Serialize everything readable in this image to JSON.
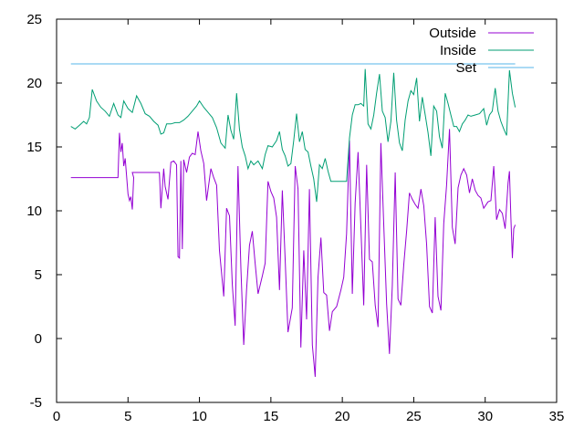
{
  "chart_data": {
    "type": "line",
    "title": "",
    "xlabel": "",
    "ylabel": "",
    "xlim": [
      0,
      35
    ],
    "ylim": [
      -5,
      25
    ],
    "x_ticks": [
      0,
      5,
      10,
      15,
      20,
      25,
      30,
      35
    ],
    "y_ticks": [
      -5,
      0,
      5,
      10,
      15,
      20,
      25
    ],
    "grid": false,
    "legend_position": "top-right",
    "series": [
      {
        "name": "Outside",
        "color": "#9400d3",
        "points": [
          [
            1.0,
            12.6
          ],
          [
            4.3,
            12.6
          ],
          [
            4.4,
            16.1
          ],
          [
            4.5,
            14.6
          ],
          [
            4.6,
            15.3
          ],
          [
            4.7,
            13.5
          ],
          [
            4.8,
            14.1
          ],
          [
            5.0,
            11.3
          ],
          [
            5.1,
            10.8
          ],
          [
            5.2,
            11.1
          ],
          [
            5.3,
            10.1
          ],
          [
            5.4,
            12.6
          ],
          [
            5.3,
            13.0
          ],
          [
            7.2,
            13.0
          ],
          [
            7.3,
            10.2
          ],
          [
            7.5,
            13.3
          ],
          [
            7.6,
            11.9
          ],
          [
            7.8,
            10.9
          ],
          [
            8.0,
            13.8
          ],
          [
            8.2,
            13.9
          ],
          [
            8.4,
            13.6
          ],
          [
            8.5,
            6.4
          ],
          [
            8.6,
            6.3
          ],
          [
            8.7,
            13.9
          ],
          [
            8.8,
            7.0
          ],
          [
            8.9,
            14.0
          ],
          [
            9.1,
            13.0
          ],
          [
            9.3,
            14.2
          ],
          [
            9.5,
            14.5
          ],
          [
            9.7,
            14.4
          ],
          [
            9.9,
            16.2
          ],
          [
            10.1,
            14.7
          ],
          [
            10.3,
            13.7
          ],
          [
            10.5,
            10.8
          ],
          [
            10.8,
            13.3
          ],
          [
            11.0,
            12.6
          ],
          [
            11.2,
            12.0
          ],
          [
            11.4,
            6.9
          ],
          [
            11.7,
            3.3
          ],
          [
            11.9,
            10.2
          ],
          [
            12.1,
            9.6
          ],
          [
            12.3,
            4.2
          ],
          [
            12.5,
            1.0
          ],
          [
            12.7,
            13.5
          ],
          [
            12.9,
            5.5
          ],
          [
            13.1,
            -0.5
          ],
          [
            13.3,
            3.8
          ],
          [
            13.5,
            7.3
          ],
          [
            13.7,
            8.4
          ],
          [
            13.9,
            5.9
          ],
          [
            14.1,
            3.5
          ],
          [
            14.4,
            4.9
          ],
          [
            14.6,
            5.9
          ],
          [
            14.8,
            12.3
          ],
          [
            15.0,
            11.5
          ],
          [
            15.2,
            11.0
          ],
          [
            15.4,
            9.5
          ],
          [
            15.6,
            3.8
          ],
          [
            15.8,
            11.6
          ],
          [
            16.0,
            6.2
          ],
          [
            16.2,
            0.5
          ],
          [
            16.5,
            2.4
          ],
          [
            16.7,
            13.5
          ],
          [
            16.9,
            11.7
          ],
          [
            17.1,
            -0.7
          ],
          [
            17.3,
            6.9
          ],
          [
            17.5,
            1.5
          ],
          [
            17.7,
            11.7
          ],
          [
            17.9,
            -0.5
          ],
          [
            18.1,
            -3.0
          ],
          [
            18.3,
            4.8
          ],
          [
            18.5,
            7.9
          ],
          [
            18.7,
            3.6
          ],
          [
            18.9,
            3.4
          ],
          [
            19.1,
            0.6
          ],
          [
            19.3,
            2.1
          ],
          [
            19.6,
            2.5
          ],
          [
            19.9,
            3.8
          ],
          [
            20.1,
            4.8
          ],
          [
            20.3,
            8.2
          ],
          [
            20.5,
            15.5
          ],
          [
            20.7,
            3.5
          ],
          [
            20.9,
            10.6
          ],
          [
            21.1,
            14.6
          ],
          [
            21.3,
            8.7
          ],
          [
            21.5,
            2.6
          ],
          [
            21.7,
            13.6
          ],
          [
            21.9,
            6.2
          ],
          [
            22.1,
            6.0
          ],
          [
            22.3,
            2.6
          ],
          [
            22.5,
            0.9
          ],
          [
            22.7,
            15.3
          ],
          [
            22.9,
            9.0
          ],
          [
            23.1,
            2.7
          ],
          [
            23.3,
            -1.2
          ],
          [
            23.5,
            4.1
          ],
          [
            23.7,
            13.0
          ],
          [
            23.9,
            3.1
          ],
          [
            24.1,
            2.6
          ],
          [
            24.3,
            5.8
          ],
          [
            24.5,
            8.4
          ],
          [
            24.7,
            11.4
          ],
          [
            24.9,
            10.9
          ],
          [
            25.1,
            10.5
          ],
          [
            25.3,
            10.2
          ],
          [
            25.5,
            11.7
          ],
          [
            25.7,
            10.4
          ],
          [
            25.9,
            7.4
          ],
          [
            26.1,
            2.5
          ],
          [
            26.3,
            2.0
          ],
          [
            26.5,
            9.5
          ],
          [
            26.7,
            3.3
          ],
          [
            26.9,
            2.2
          ],
          [
            27.1,
            9.0
          ],
          [
            27.3,
            12.0
          ],
          [
            27.5,
            16.4
          ],
          [
            27.7,
            8.7
          ],
          [
            27.9,
            7.4
          ],
          [
            28.1,
            11.8
          ],
          [
            28.3,
            12.8
          ],
          [
            28.5,
            13.3
          ],
          [
            28.7,
            12.8
          ],
          [
            28.9,
            11.4
          ],
          [
            29.1,
            12.5
          ],
          [
            29.3,
            11.6
          ],
          [
            29.5,
            11.2
          ],
          [
            29.7,
            11.0
          ],
          [
            29.9,
            10.2
          ],
          [
            30.2,
            10.7
          ],
          [
            30.4,
            10.8
          ],
          [
            30.6,
            13.5
          ],
          [
            30.8,
            9.3
          ],
          [
            31.0,
            10.1
          ],
          [
            31.2,
            9.8
          ],
          [
            31.4,
            8.6
          ],
          [
            31.6,
            12.2
          ],
          [
            31.7,
            13.1
          ],
          [
            31.8,
            9.4
          ],
          [
            31.9,
            6.3
          ],
          [
            32.0,
            8.6
          ],
          [
            32.1,
            8.9
          ]
        ]
      },
      {
        "name": "Inside",
        "color": "#009e73",
        "points": [
          [
            1.0,
            16.6
          ],
          [
            1.3,
            16.4
          ],
          [
            1.6,
            16.7
          ],
          [
            1.9,
            17.0
          ],
          [
            2.1,
            16.8
          ],
          [
            2.3,
            17.3
          ],
          [
            2.5,
            19.5
          ],
          [
            2.8,
            18.6
          ],
          [
            3.1,
            18.1
          ],
          [
            3.4,
            17.8
          ],
          [
            3.7,
            17.4
          ],
          [
            4.0,
            18.4
          ],
          [
            4.3,
            17.5
          ],
          [
            4.5,
            17.3
          ],
          [
            4.7,
            18.6
          ],
          [
            5.0,
            18.0
          ],
          [
            5.3,
            17.7
          ],
          [
            5.6,
            19.0
          ],
          [
            5.9,
            18.4
          ],
          [
            6.2,
            17.6
          ],
          [
            6.5,
            17.4
          ],
          [
            6.8,
            17.0
          ],
          [
            7.1,
            16.7
          ],
          [
            7.3,
            16.0
          ],
          [
            7.5,
            16.1
          ],
          [
            7.7,
            16.8
          ],
          [
            8.0,
            16.8
          ],
          [
            8.3,
            16.9
          ],
          [
            8.6,
            16.9
          ],
          [
            8.9,
            17.1
          ],
          [
            9.2,
            17.4
          ],
          [
            9.5,
            17.8
          ],
          [
            9.8,
            18.2
          ],
          [
            10.0,
            18.6
          ],
          [
            10.3,
            18.1
          ],
          [
            10.6,
            17.7
          ],
          [
            10.9,
            17.3
          ],
          [
            11.2,
            16.5
          ],
          [
            11.5,
            15.3
          ],
          [
            11.8,
            14.9
          ],
          [
            12.0,
            17.5
          ],
          [
            12.2,
            16.3
          ],
          [
            12.4,
            15.6
          ],
          [
            12.6,
            19.2
          ],
          [
            12.8,
            16.4
          ],
          [
            13.0,
            15.0
          ],
          [
            13.2,
            14.3
          ],
          [
            13.4,
            13.3
          ],
          [
            13.6,
            13.9
          ],
          [
            13.8,
            13.6
          ],
          [
            14.1,
            13.9
          ],
          [
            14.4,
            13.3
          ],
          [
            14.6,
            14.4
          ],
          [
            14.8,
            15.1
          ],
          [
            15.1,
            15.0
          ],
          [
            15.4,
            15.5
          ],
          [
            15.6,
            16.2
          ],
          [
            15.8,
            14.8
          ],
          [
            16.0,
            14.3
          ],
          [
            16.2,
            13.5
          ],
          [
            16.4,
            13.7
          ],
          [
            16.6,
            15.5
          ],
          [
            16.8,
            17.6
          ],
          [
            17.0,
            15.4
          ],
          [
            17.2,
            16.2
          ],
          [
            17.4,
            14.8
          ],
          [
            17.6,
            14.6
          ],
          [
            17.8,
            13.5
          ],
          [
            18.0,
            12.5
          ],
          [
            18.2,
            10.7
          ],
          [
            18.4,
            13.6
          ],
          [
            18.6,
            13.3
          ],
          [
            18.8,
            14.1
          ],
          [
            19.0,
            13.1
          ],
          [
            19.2,
            12.3
          ],
          [
            19.5,
            12.3
          ],
          [
            19.8,
            12.3
          ],
          [
            20.1,
            12.3
          ],
          [
            20.3,
            12.3
          ],
          [
            20.5,
            15.7
          ],
          [
            20.7,
            17.5
          ],
          [
            20.9,
            18.3
          ],
          [
            21.1,
            18.3
          ],
          [
            21.3,
            18.4
          ],
          [
            21.5,
            18.2
          ],
          [
            21.6,
            21.1
          ],
          [
            21.8,
            16.8
          ],
          [
            22.0,
            16.4
          ],
          [
            22.2,
            17.5
          ],
          [
            22.4,
            19.2
          ],
          [
            22.6,
            20.7
          ],
          [
            22.8,
            17.8
          ],
          [
            23.0,
            17.3
          ],
          [
            23.2,
            15.4
          ],
          [
            23.4,
            17.0
          ],
          [
            23.6,
            20.8
          ],
          [
            23.8,
            17.1
          ],
          [
            24.0,
            15.3
          ],
          [
            24.2,
            14.7
          ],
          [
            24.4,
            17.1
          ],
          [
            24.6,
            18.6
          ],
          [
            24.8,
            19.4
          ],
          [
            25.0,
            19.1
          ],
          [
            25.2,
            20.4
          ],
          [
            25.4,
            17.0
          ],
          [
            25.6,
            18.9
          ],
          [
            25.8,
            17.5
          ],
          [
            26.0,
            16.1
          ],
          [
            26.2,
            14.3
          ],
          [
            26.4,
            18.2
          ],
          [
            26.6,
            17.8
          ],
          [
            26.8,
            15.8
          ],
          [
            27.0,
            14.9
          ],
          [
            27.2,
            19.2
          ],
          [
            27.4,
            18.4
          ],
          [
            27.6,
            17.5
          ],
          [
            27.8,
            16.6
          ],
          [
            28.0,
            16.6
          ],
          [
            28.2,
            16.2
          ],
          [
            28.4,
            16.8
          ],
          [
            28.6,
            17.1
          ],
          [
            28.8,
            17.5
          ],
          [
            29.0,
            17.4
          ],
          [
            29.3,
            17.5
          ],
          [
            29.6,
            17.6
          ],
          [
            29.9,
            18.0
          ],
          [
            30.1,
            16.7
          ],
          [
            30.3,
            17.5
          ],
          [
            30.5,
            17.8
          ],
          [
            30.7,
            19.6
          ],
          [
            30.9,
            17.8
          ],
          [
            31.1,
            17.0
          ],
          [
            31.3,
            16.4
          ],
          [
            31.5,
            15.9
          ],
          [
            31.7,
            21.0
          ],
          [
            31.9,
            19.2
          ],
          [
            32.1,
            18.1
          ]
        ]
      },
      {
        "name": "Set",
        "color": "#56b4e9",
        "points": [
          [
            1.0,
            21.5
          ],
          [
            32.1,
            21.5
          ]
        ]
      }
    ]
  }
}
